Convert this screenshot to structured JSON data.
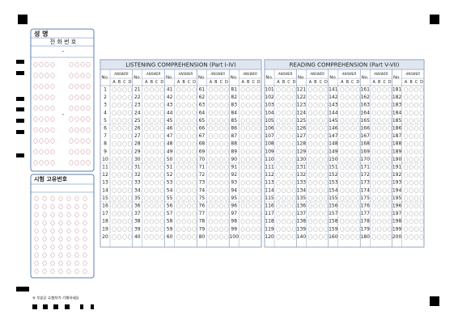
{
  "name_box": {
    "label": "성 명",
    "phone_label": "전 화 번 호",
    "dash": "-"
  },
  "exam_box": {
    "label": "시험 고유번호"
  },
  "footer_note": "※ 부분은 수험자가 기재하세요",
  "labels": {
    "no": "No.",
    "answer": "ANSWER",
    "choices": [
      "A",
      "B",
      "C",
      "D"
    ]
  },
  "sections": [
    {
      "title": "LISTENING COMPREHENSION (Part I-IV)",
      "numbers": [
        1,
        2,
        3,
        4,
        5,
        6,
        7,
        8,
        9,
        10,
        11,
        12,
        13,
        14,
        15,
        16,
        17,
        18,
        19,
        20,
        21,
        22,
        23,
        24,
        25,
        26,
        27,
        28,
        29,
        30,
        31,
        32,
        33,
        34,
        35,
        36,
        37,
        38,
        39,
        40,
        41,
        42,
        43,
        44,
        45,
        46,
        47,
        48,
        49,
        50,
        51,
        52,
        53,
        54,
        55,
        56,
        57,
        58,
        59,
        60,
        61,
        62,
        63,
        64,
        65,
        66,
        67,
        68,
        69,
        70,
        71,
        72,
        73,
        74,
        75,
        76,
        77,
        78,
        79,
        80,
        81,
        82,
        83,
        84,
        85,
        86,
        87,
        88,
        89,
        90,
        91,
        92,
        93,
        94,
        95,
        96,
        97,
        98,
        99,
        100
      ]
    },
    {
      "title": "READING COMPREHENSION (Part V-VII)",
      "numbers": [
        101,
        102,
        103,
        104,
        105,
        106,
        107,
        108,
        109,
        110,
        111,
        112,
        113,
        114,
        115,
        116,
        117,
        118,
        119,
        120,
        121,
        122,
        123,
        124,
        125,
        126,
        127,
        128,
        129,
        130,
        131,
        132,
        133,
        134,
        135,
        136,
        137,
        138,
        139,
        140,
        141,
        142,
        143,
        144,
        145,
        146,
        147,
        148,
        149,
        150,
        151,
        152,
        153,
        154,
        155,
        156,
        157,
        158,
        159,
        160,
        161,
        162,
        163,
        164,
        165,
        166,
        167,
        168,
        169,
        170,
        171,
        172,
        173,
        174,
        175,
        176,
        177,
        178,
        179,
        180,
        181,
        182,
        183,
        184,
        185,
        186,
        187,
        188,
        189,
        190,
        191,
        192,
        193,
        194,
        195,
        196,
        197,
        198,
        199,
        200
      ]
    }
  ]
}
